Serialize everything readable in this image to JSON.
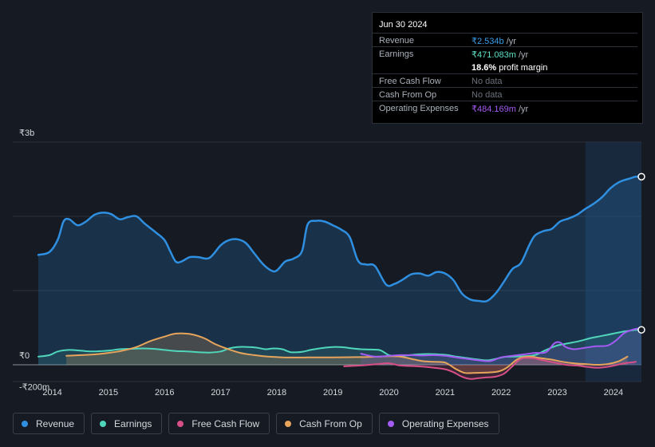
{
  "tooltip": {
    "date": "Jun 30 2024",
    "rows": [
      {
        "label": "Revenue",
        "value": "₹2.534b",
        "unit": "/yr",
        "color": "#3a9ee8"
      },
      {
        "label": "Earnings",
        "value": "₹471.083m",
        "unit": "/yr",
        "color": "#5ee0c6"
      },
      {
        "label": "Free Cash Flow",
        "value": "No data",
        "unit": "",
        "color": "#6b717b"
      },
      {
        "label": "Cash From Op",
        "value": "No data",
        "unit": "",
        "color": "#6b717b"
      },
      {
        "label": "Operating Expenses",
        "value": "₹484.169m",
        "unit": "/yr",
        "color": "#a35bf2"
      }
    ],
    "margin_value": "18.6%",
    "margin_label": "profit margin"
  },
  "legend": [
    {
      "label": "Revenue",
      "color": "#2f8fe0"
    },
    {
      "label": "Earnings",
      "color": "#4fd6bb"
    },
    {
      "label": "Free Cash Flow",
      "color": "#d64f86"
    },
    {
      "label": "Cash From Op",
      "color": "#e7a55c"
    },
    {
      "label": "Operating Expenses",
      "color": "#a35bf2"
    }
  ],
  "chart_data": {
    "type": "area",
    "y_axis_labels": [
      "₹3b",
      "₹0",
      "-₹200m"
    ],
    "ylim": [
      -200,
      3000
    ],
    "y_unit": "₹m",
    "x_tick_labels": [
      "2014",
      "2015",
      "2016",
      "2017",
      "2018",
      "2019",
      "2020",
      "2021",
      "2022",
      "2023",
      "2024"
    ],
    "xlim": [
      2013.75,
      2024.5
    ],
    "highlight_from": 2023.5,
    "series": [
      {
        "name": "Revenue",
        "color": "#2f8fe0",
        "points": [
          [
            2013.75,
            1480
          ],
          [
            2013.95,
            1520
          ],
          [
            2014.1,
            1690
          ],
          [
            2014.2,
            1930
          ],
          [
            2014.3,
            1960
          ],
          [
            2014.45,
            1880
          ],
          [
            2014.6,
            1930
          ],
          [
            2014.75,
            2020
          ],
          [
            2014.9,
            2050
          ],
          [
            2015.05,
            2030
          ],
          [
            2015.2,
            1960
          ],
          [
            2015.35,
            1990
          ],
          [
            2015.5,
            2000
          ],
          [
            2015.65,
            1900
          ],
          [
            2015.85,
            1780
          ],
          [
            2016.0,
            1680
          ],
          [
            2016.1,
            1530
          ],
          [
            2016.2,
            1390
          ],
          [
            2016.3,
            1390
          ],
          [
            2016.45,
            1450
          ],
          [
            2016.6,
            1450
          ],
          [
            2016.8,
            1440
          ],
          [
            2017.0,
            1610
          ],
          [
            2017.15,
            1680
          ],
          [
            2017.3,
            1690
          ],
          [
            2017.45,
            1640
          ],
          [
            2017.6,
            1500
          ],
          [
            2017.75,
            1360
          ],
          [
            2017.9,
            1270
          ],
          [
            2018.0,
            1270
          ],
          [
            2018.15,
            1390
          ],
          [
            2018.3,
            1430
          ],
          [
            2018.45,
            1530
          ],
          [
            2018.55,
            1890
          ],
          [
            2018.7,
            1940
          ],
          [
            2018.85,
            1930
          ],
          [
            2019.0,
            1880
          ],
          [
            2019.15,
            1820
          ],
          [
            2019.3,
            1720
          ],
          [
            2019.45,
            1400
          ],
          [
            2019.6,
            1350
          ],
          [
            2019.75,
            1330
          ],
          [
            2019.95,
            1080
          ],
          [
            2020.1,
            1090
          ],
          [
            2020.25,
            1150
          ],
          [
            2020.4,
            1220
          ],
          [
            2020.55,
            1230
          ],
          [
            2020.7,
            1200
          ],
          [
            2020.85,
            1250
          ],
          [
            2021.0,
            1230
          ],
          [
            2021.15,
            1140
          ],
          [
            2021.3,
            960
          ],
          [
            2021.45,
            880
          ],
          [
            2021.6,
            860
          ],
          [
            2021.75,
            860
          ],
          [
            2021.9,
            960
          ],
          [
            2022.05,
            1120
          ],
          [
            2022.2,
            1290
          ],
          [
            2022.35,
            1370
          ],
          [
            2022.5,
            1610
          ],
          [
            2022.6,
            1740
          ],
          [
            2022.75,
            1800
          ],
          [
            2022.9,
            1830
          ],
          [
            2023.05,
            1930
          ],
          [
            2023.2,
            1970
          ],
          [
            2023.35,
            2020
          ],
          [
            2023.5,
            2100
          ],
          [
            2023.65,
            2170
          ],
          [
            2023.8,
            2260
          ],
          [
            2023.95,
            2380
          ],
          [
            2024.1,
            2460
          ],
          [
            2024.25,
            2500
          ],
          [
            2024.4,
            2534
          ],
          [
            2024.5,
            2534
          ]
        ]
      },
      {
        "name": "Earnings",
        "color": "#4fd6bb",
        "points": [
          [
            2013.75,
            110
          ],
          [
            2013.95,
            130
          ],
          [
            2014.1,
            180
          ],
          [
            2014.3,
            200
          ],
          [
            2014.5,
            190
          ],
          [
            2014.7,
            180
          ],
          [
            2014.9,
            185
          ],
          [
            2015.05,
            195
          ],
          [
            2015.2,
            210
          ],
          [
            2015.4,
            215
          ],
          [
            2015.6,
            220
          ],
          [
            2015.8,
            215
          ],
          [
            2016.0,
            200
          ],
          [
            2016.2,
            185
          ],
          [
            2016.4,
            180
          ],
          [
            2016.6,
            170
          ],
          [
            2016.8,
            165
          ],
          [
            2017.0,
            180
          ],
          [
            2017.15,
            220
          ],
          [
            2017.3,
            240
          ],
          [
            2017.5,
            240
          ],
          [
            2017.65,
            230
          ],
          [
            2017.8,
            210
          ],
          [
            2017.95,
            220
          ],
          [
            2018.1,
            210
          ],
          [
            2018.25,
            170
          ],
          [
            2018.45,
            175
          ],
          [
            2018.6,
            200
          ],
          [
            2018.8,
            225
          ],
          [
            2019.0,
            240
          ],
          [
            2019.2,
            235
          ],
          [
            2019.35,
            220
          ],
          [
            2019.5,
            210
          ],
          [
            2019.7,
            205
          ],
          [
            2019.85,
            195
          ],
          [
            2020.0,
            130
          ],
          [
            2020.15,
            120
          ],
          [
            2020.3,
            125
          ],
          [
            2020.5,
            140
          ],
          [
            2020.7,
            145
          ],
          [
            2020.9,
            140
          ],
          [
            2021.05,
            130
          ],
          [
            2021.2,
            110
          ],
          [
            2021.4,
            90
          ],
          [
            2021.6,
            70
          ],
          [
            2021.75,
            60
          ],
          [
            2021.9,
            80
          ],
          [
            2022.05,
            105
          ],
          [
            2022.2,
            110
          ],
          [
            2022.4,
            115
          ],
          [
            2022.6,
            130
          ],
          [
            2022.8,
            200
          ],
          [
            2023.0,
            260
          ],
          [
            2023.2,
            290
          ],
          [
            2023.4,
            320
          ],
          [
            2023.6,
            360
          ],
          [
            2023.8,
            390
          ],
          [
            2024.0,
            420
          ],
          [
            2024.2,
            450
          ],
          [
            2024.4,
            471
          ],
          [
            2024.5,
            471
          ]
        ]
      },
      {
        "name": "Free Cash Flow",
        "color": "#d64f86",
        "points": [
          [
            2019.2,
            -20
          ],
          [
            2019.5,
            -10
          ],
          [
            2019.8,
            10
          ],
          [
            2020.0,
            20
          ],
          [
            2020.2,
            -10
          ],
          [
            2020.5,
            -20
          ],
          [
            2020.8,
            -40
          ],
          [
            2021.0,
            -60
          ],
          [
            2021.15,
            -100
          ],
          [
            2021.3,
            -160
          ],
          [
            2021.45,
            -190
          ],
          [
            2021.6,
            -180
          ],
          [
            2021.75,
            -170
          ],
          [
            2021.9,
            -160
          ],
          [
            2022.05,
            -120
          ],
          [
            2022.2,
            -20
          ],
          [
            2022.35,
            80
          ],
          [
            2022.55,
            90
          ],
          [
            2022.75,
            60
          ],
          [
            2022.95,
            30
          ],
          [
            2023.15,
            0
          ],
          [
            2023.35,
            -10
          ],
          [
            2023.55,
            -30
          ],
          [
            2023.75,
            -40
          ],
          [
            2023.95,
            -20
          ],
          [
            2024.2,
            20
          ],
          [
            2024.4,
            40
          ]
        ]
      },
      {
        "name": "Cash From Op",
        "color": "#e7a55c",
        "points": [
          [
            2014.25,
            120
          ],
          [
            2014.5,
            130
          ],
          [
            2014.75,
            140
          ],
          [
            2015.0,
            160
          ],
          [
            2015.25,
            190
          ],
          [
            2015.5,
            240
          ],
          [
            2015.75,
            320
          ],
          [
            2016.0,
            380
          ],
          [
            2016.2,
            420
          ],
          [
            2016.45,
            415
          ],
          [
            2016.7,
            360
          ],
          [
            2016.9,
            280
          ],
          [
            2017.1,
            220
          ],
          [
            2017.35,
            160
          ],
          [
            2017.6,
            130
          ],
          [
            2017.85,
            110
          ],
          [
            2018.1,
            100
          ],
          [
            2018.4,
            98
          ],
          [
            2018.7,
            100
          ],
          [
            2019.0,
            100
          ],
          [
            2019.3,
            102
          ],
          [
            2019.6,
            105
          ],
          [
            2019.85,
            110
          ],
          [
            2020.0,
            115
          ],
          [
            2020.2,
            110
          ],
          [
            2020.4,
            80
          ],
          [
            2020.6,
            50
          ],
          [
            2020.8,
            40
          ],
          [
            2021.0,
            30
          ],
          [
            2021.2,
            -60
          ],
          [
            2021.35,
            -110
          ],
          [
            2021.5,
            -110
          ],
          [
            2021.75,
            -105
          ],
          [
            2021.95,
            -90
          ],
          [
            2022.1,
            -40
          ],
          [
            2022.3,
            80
          ],
          [
            2022.5,
            110
          ],
          [
            2022.7,
            90
          ],
          [
            2022.9,
            70
          ],
          [
            2023.1,
            40
          ],
          [
            2023.3,
            20
          ],
          [
            2023.5,
            10
          ],
          [
            2023.7,
            0
          ],
          [
            2023.9,
            10
          ],
          [
            2024.1,
            50
          ],
          [
            2024.25,
            110
          ]
        ]
      },
      {
        "name": "Operating Expenses",
        "color": "#a35bf2",
        "points": [
          [
            2019.5,
            150
          ],
          [
            2019.75,
            110
          ],
          [
            2020.0,
            120
          ],
          [
            2020.2,
            130
          ],
          [
            2020.4,
            130
          ],
          [
            2020.6,
            125
          ],
          [
            2020.8,
            130
          ],
          [
            2021.0,
            120
          ],
          [
            2021.2,
            100
          ],
          [
            2021.4,
            80
          ],
          [
            2021.6,
            60
          ],
          [
            2021.8,
            50
          ],
          [
            2022.0,
            100
          ],
          [
            2022.2,
            120
          ],
          [
            2022.4,
            140
          ],
          [
            2022.6,
            160
          ],
          [
            2022.8,
            170
          ],
          [
            2022.95,
            290
          ],
          [
            2023.05,
            300
          ],
          [
            2023.15,
            240
          ],
          [
            2023.3,
            210
          ],
          [
            2023.5,
            230
          ],
          [
            2023.7,
            250
          ],
          [
            2023.9,
            260
          ],
          [
            2024.05,
            330
          ],
          [
            2024.2,
            430
          ],
          [
            2024.4,
            484
          ],
          [
            2024.5,
            484
          ]
        ]
      }
    ]
  }
}
